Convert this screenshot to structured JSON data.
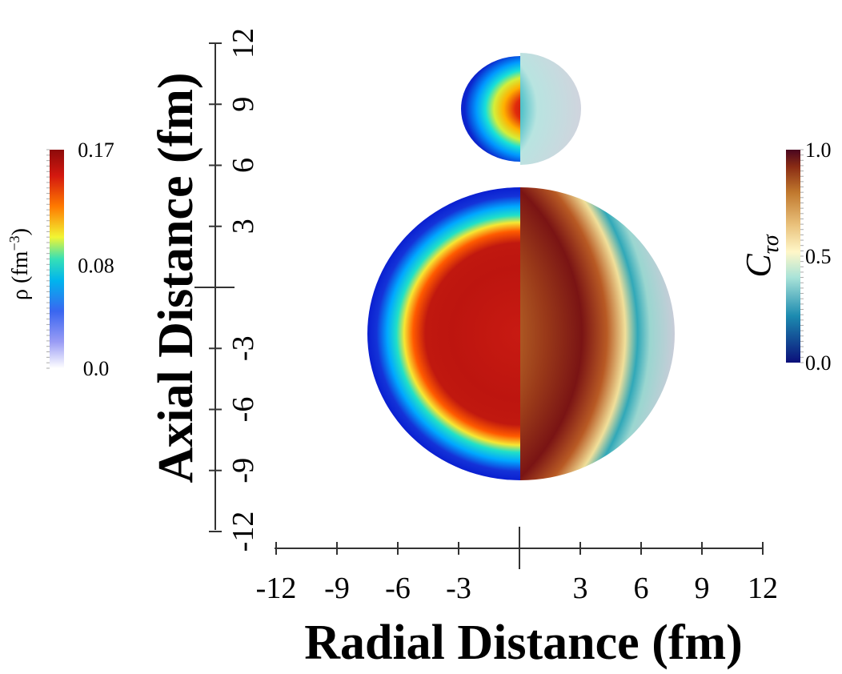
{
  "chart_data": {
    "type": "heatmap",
    "xlabel": "Radial Distance (fm)",
    "ylabel": "Axial Distance (fm)",
    "xlim": [
      -12,
      12
    ],
    "ylim": [
      -12,
      12
    ],
    "x_ticks": [
      "-12",
      "-9",
      "-6",
      "-3",
      "3",
      "6",
      "9",
      "12"
    ],
    "y_ticks": [
      "12",
      "9",
      "6",
      "3",
      "-3",
      "-6",
      "-9",
      "-12"
    ],
    "panels": {
      "left": {
        "field": "density",
        "x_range": [
          -12,
          0
        ]
      },
      "right": {
        "field": "localization",
        "x_range": [
          0,
          12
        ]
      }
    },
    "fragments": [
      {
        "name": "light fragment",
        "center_z": 9,
        "radius": 3
      },
      {
        "name": "heavy fragment",
        "center_z": -3,
        "radius": 7.5
      }
    ],
    "colorbars": {
      "density": {
        "title": "ρ (fm",
        "title_unit_exp": "−3",
        "title_close": ")",
        "range": [
          0.0,
          0.17
        ],
        "ticks": [
          "0.17",
          "0.08",
          "0.0"
        ],
        "colormap": "jet",
        "colors": [
          "#ffffff",
          "#6b6cf0",
          "#00aaff",
          "#13e3c4",
          "#f2f533",
          "#ff6a00",
          "#c0120f",
          "#8c0a0a"
        ]
      },
      "localization": {
        "title_symbol": "C",
        "title_subscript": "τσ",
        "range": [
          0.0,
          1.0
        ],
        "ticks": [
          "1.0",
          "0.5",
          "0.0"
        ],
        "colormap": "diverging",
        "colors": [
          "#0b0f7a",
          "#1c8bb0",
          "#a9e3d8",
          "#fff7c8",
          "#e9c07a",
          "#c0782d",
          "#8a2c14",
          "#4a0520"
        ]
      }
    }
  }
}
